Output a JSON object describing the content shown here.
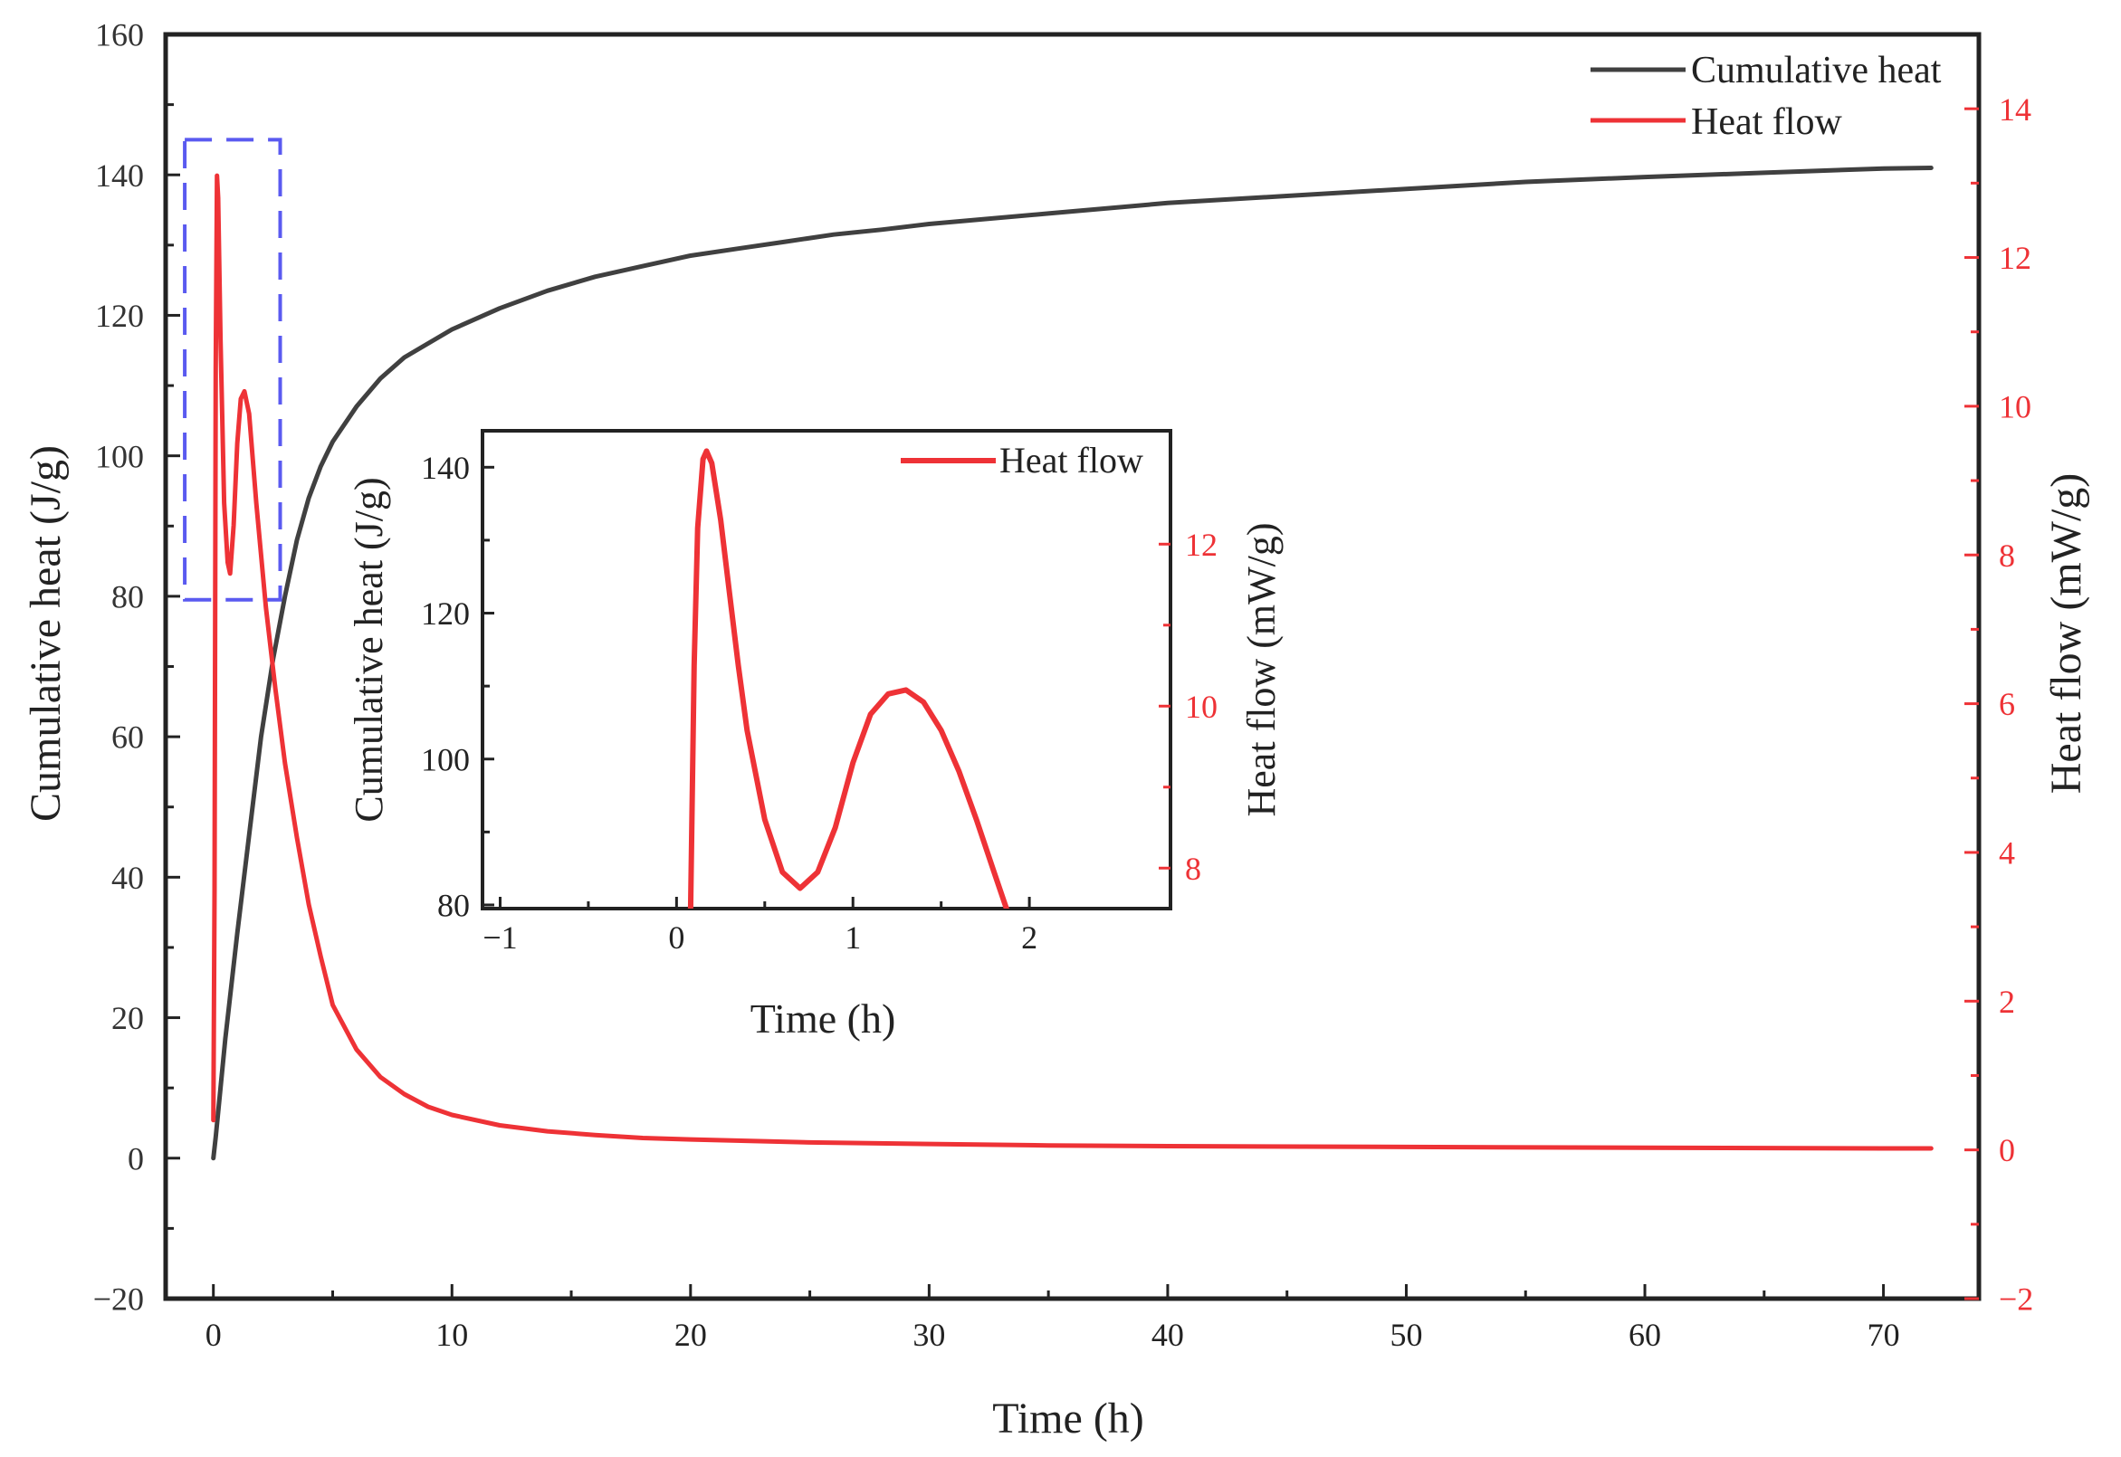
{
  "colors": {
    "cumulative": "#404040",
    "heat_flow": "#ee3236",
    "axis": "#222222",
    "right_axis": "#ee3236",
    "highlight_box": "#5a5af0"
  },
  "chart_data": [
    {
      "id": "main",
      "type": "line",
      "xlabel": "Time (h)",
      "ylabel": "Cumulative heat (J/g)",
      "y2label": "Heat flow (mW/g)",
      "xlim": [
        -2,
        74
      ],
      "ylim": [
        -20,
        160
      ],
      "y2lim": [
        -2,
        15
      ],
      "xticks": [
        0,
        10,
        20,
        30,
        40,
        50,
        60,
        70
      ],
      "yticks": [
        -20,
        0,
        20,
        40,
        60,
        80,
        100,
        120,
        140,
        160
      ],
      "y2ticks": [
        -2,
        0,
        2,
        4,
        6,
        8,
        10,
        12,
        14
      ],
      "legend": "top-right",
      "highlight_box": {
        "x": [
          -1.2,
          2.8
        ],
        "y": [
          79.5,
          145
        ]
      },
      "series": [
        {
          "name": "Cumulative heat",
          "axis": "left",
          "x": [
            0,
            0.1,
            0.3,
            0.5,
            1,
            1.5,
            2,
            2.5,
            3,
            3.5,
            4,
            4.5,
            5,
            6,
            7,
            8,
            9,
            10,
            12,
            14,
            16,
            18,
            20,
            22,
            24,
            26,
            28,
            30,
            35,
            40,
            45,
            50,
            55,
            60,
            65,
            70,
            72
          ],
          "y": [
            0,
            3,
            10,
            17,
            32,
            46,
            60,
            71,
            80,
            88,
            94,
            98.5,
            102,
            107,
            111,
            114,
            116,
            118,
            121,
            123.5,
            125.5,
            127,
            128.5,
            129.5,
            130.5,
            131.5,
            132.2,
            133,
            134.5,
            136,
            137,
            138,
            139,
            139.7,
            140.3,
            140.9,
            141
          ]
        },
        {
          "name": "Heat flow",
          "axis": "right",
          "x": [
            0,
            0.05,
            0.1,
            0.15,
            0.2,
            0.3,
            0.45,
            0.6,
            0.7,
            0.85,
            1.0,
            1.15,
            1.3,
            1.5,
            1.8,
            2.2,
            2.6,
            3.0,
            3.5,
            4,
            4.5,
            5,
            6,
            7,
            8,
            9,
            10,
            12,
            14,
            16,
            18,
            20,
            25,
            30,
            35,
            40,
            50,
            60,
            70,
            72
          ],
          "y": [
            0.4,
            3.5,
            10.5,
            13.1,
            12.8,
            10.9,
            8.7,
            7.9,
            7.75,
            8.4,
            9.5,
            10.1,
            10.2,
            9.9,
            8.7,
            7.3,
            6.2,
            5.2,
            4.2,
            3.3,
            2.6,
            1.95,
            1.35,
            0.98,
            0.75,
            0.58,
            0.47,
            0.33,
            0.25,
            0.2,
            0.16,
            0.14,
            0.1,
            0.08,
            0.06,
            0.05,
            0.04,
            0.03,
            0.02,
            0.02
          ]
        }
      ]
    },
    {
      "id": "inset",
      "type": "line",
      "xlabel": "Time (h)",
      "ylabel": "Cumulative heat (J/g)",
      "y2label": "Heat flow (mW/g)",
      "xlim": [
        -1.1,
        2.8
      ],
      "ylim": [
        79.5,
        145
      ],
      "y2lim": [
        7.5,
        13.4
      ],
      "xticks": [
        -1,
        0,
        1,
        2
      ],
      "yticks": [
        80,
        100,
        120,
        140
      ],
      "y2ticks": [
        8,
        10,
        12
      ],
      "legend": "top-right",
      "series": [
        {
          "name": "Heat flow",
          "axis": "right",
          "x": [
            0.08,
            0.1,
            0.12,
            0.15,
            0.17,
            0.2,
            0.25,
            0.3,
            0.35,
            0.4,
            0.5,
            0.6,
            0.7,
            0.8,
            0.9,
            1.0,
            1.1,
            1.2,
            1.3,
            1.4,
            1.5,
            1.6,
            1.7,
            1.8,
            1.87
          ],
          "y": [
            7.5,
            10.5,
            12.2,
            13.05,
            13.15,
            13.0,
            12.3,
            11.4,
            10.5,
            9.7,
            8.6,
            7.95,
            7.75,
            7.95,
            8.5,
            9.3,
            9.9,
            10.15,
            10.2,
            10.05,
            9.7,
            9.2,
            8.6,
            7.95,
            7.5
          ]
        }
      ]
    }
  ]
}
